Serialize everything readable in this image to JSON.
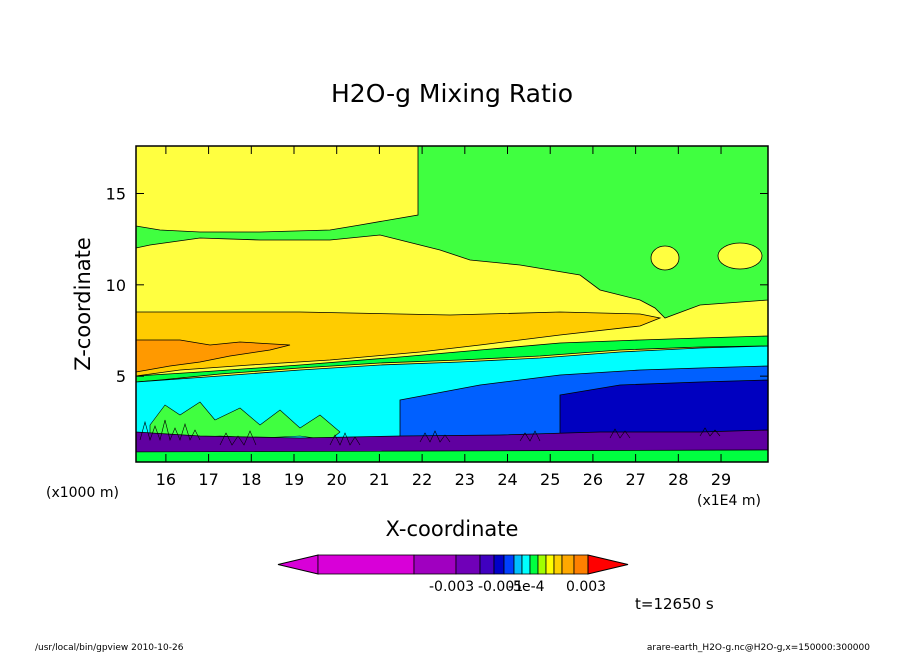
{
  "chart_data": {
    "type": "heatmap",
    "title": "H2O-g Mixing Ratio",
    "xlabel": "X-coordinate",
    "ylabel": "Z-coordinate",
    "x_unit_label": "(x1E4 m)",
    "y_unit_label": "(x1000 m)",
    "xlim": [
      15.3,
      30.1
    ],
    "ylim": [
      0.3,
      17.6
    ],
    "x_ticks": [
      "16",
      "17",
      "18",
      "19",
      "20",
      "21",
      "22",
      "23",
      "24",
      "25",
      "26",
      "27",
      "28",
      "29"
    ],
    "y_ticks": [
      "5",
      "10",
      "15"
    ],
    "x_tick_values": [
      16,
      17,
      18,
      19,
      20,
      21,
      22,
      23,
      24,
      25,
      26,
      27,
      28,
      29
    ],
    "y_tick_values": [
      5,
      10,
      15
    ],
    "colorbar": {
      "colors": [
        "#d800d8",
        "#a000c0",
        "#7000b8",
        "#4000c0",
        "#0000c8",
        "#0040ff",
        "#00c0ff",
        "#00ffff",
        "#00ff40",
        "#a0ff00",
        "#ffff00",
        "#ffd000",
        "#ffa800",
        "#ff8000",
        "#ff0000"
      ],
      "labels": [
        "-0.003",
        "-0.001",
        "-5e-4",
        "0.003"
      ]
    },
    "regions": [
      {
        "name": "upper-yellow",
        "color": "#ffff40"
      },
      {
        "name": "upper-green",
        "color": "#40ff40"
      },
      {
        "name": "orange-band",
        "color": "#ffcc00"
      },
      {
        "name": "dark-orange",
        "color": "#ff9900"
      },
      {
        "name": "cyan-layer",
        "color": "#00ffff"
      },
      {
        "name": "blue-layer",
        "color": "#0060ff"
      },
      {
        "name": "navy-layer",
        "color": "#0000c0"
      },
      {
        "name": "purple-layer",
        "color": "#6000a0"
      },
      {
        "name": "surface-green",
        "color": "#00ff40"
      }
    ],
    "time_label": "t=12650 s",
    "grid": false,
    "legend": "bottom-center colorbar"
  },
  "footer": {
    "left": "/usr/local/bin/gpview  2010-10-26",
    "right": "arare-earth_H2O-g.nc@H2O-g,x=150000:300000"
  }
}
